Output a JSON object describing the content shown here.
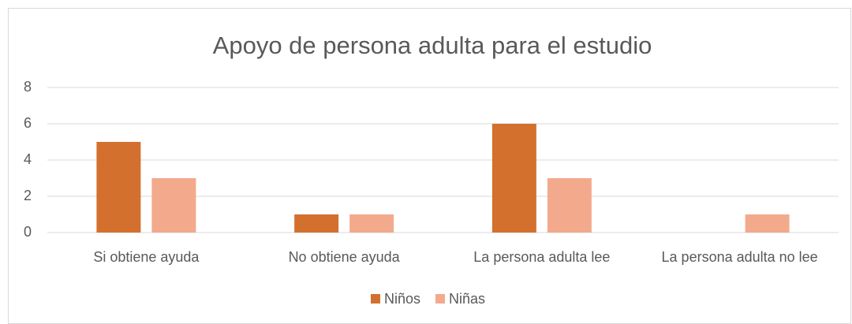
{
  "chart_data": {
    "type": "bar",
    "title": "Apoyo de persona adulta para el estudio",
    "categories": [
      "Si obtiene ayuda",
      "No obtiene ayuda",
      "La persona adulta lee",
      "La persona adulta no lee"
    ],
    "series": [
      {
        "name": "Niños",
        "color": "#d4702d",
        "values": [
          5,
          1,
          6,
          0
        ]
      },
      {
        "name": "Niñas",
        "color": "#f3aa8c",
        "values": [
          3,
          1,
          3,
          1
        ]
      }
    ],
    "ylim": [
      0,
      8
    ],
    "yticks": [
      0,
      2,
      4,
      6,
      8
    ],
    "grid": true,
    "legend": "bottom"
  }
}
